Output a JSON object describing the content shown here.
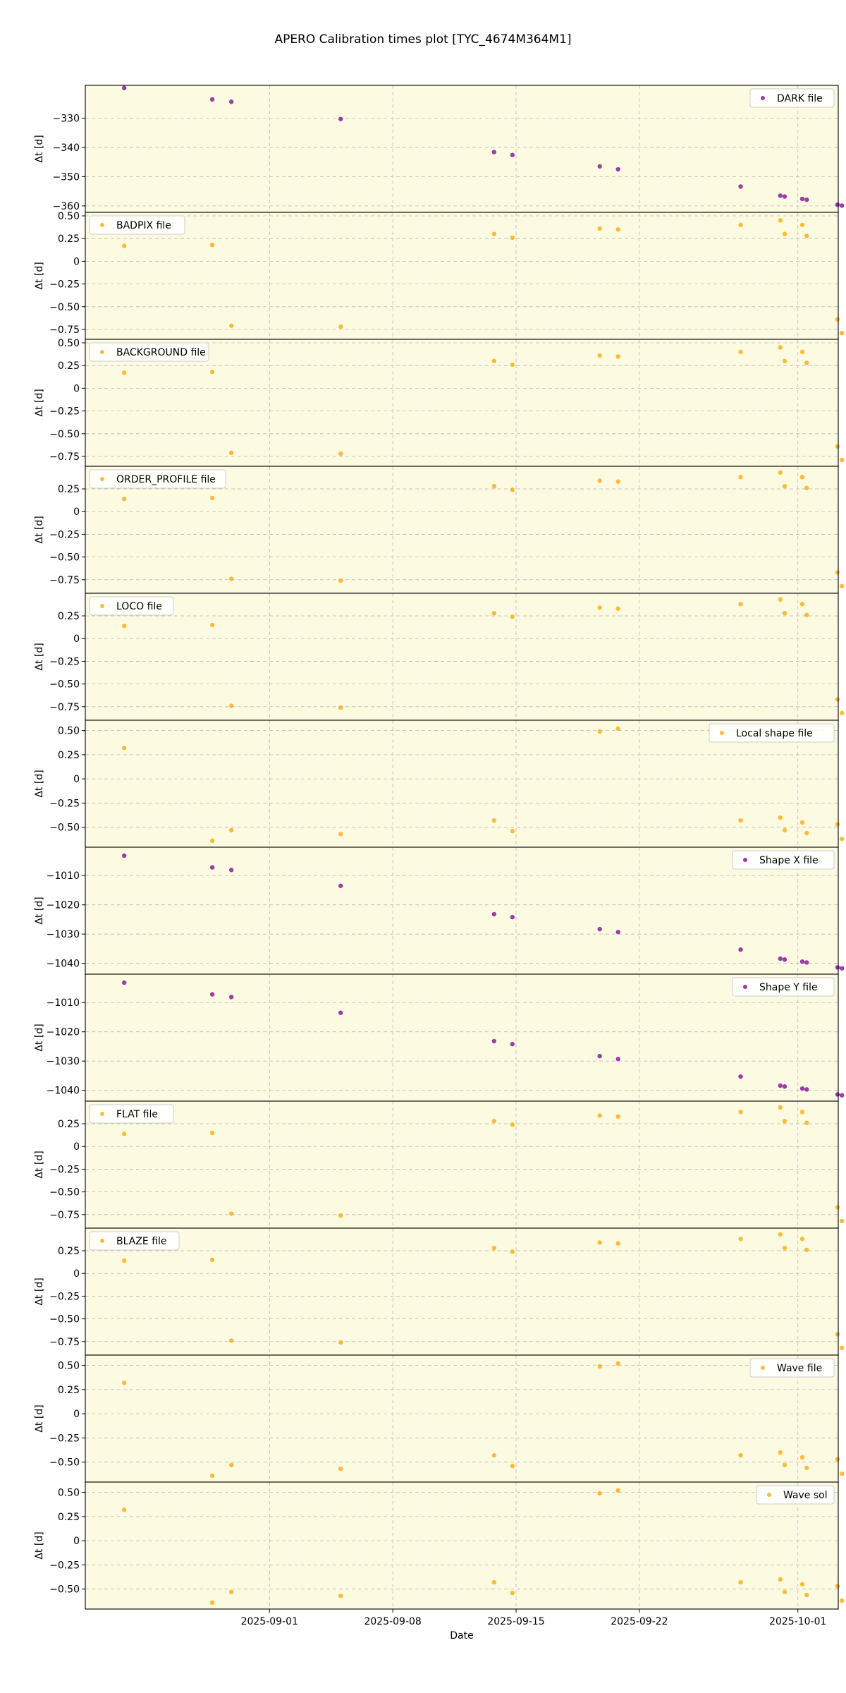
{
  "chart_data": {
    "type": "scatter",
    "title": "APERO Calibration times plot [TYC_4674M364M1]",
    "xlabel": "Date",
    "ylabel": "Δt [d]",
    "xlim": [
      "2025-08-21T13:00",
      "2025-10-03T07:00"
    ],
    "xticks": [
      "2025-09-01",
      "2025-09-08",
      "2025-09-15",
      "2025-09-22",
      "2025-10-01"
    ],
    "grid": true,
    "background": "#fcfbe2",
    "x": [
      "2025-08-23T18:00",
      "2025-08-28T18:00",
      "2025-08-29T20:00",
      "2025-09-05T01:00",
      "2025-09-13T18:00",
      "2025-09-14T19:00",
      "2025-09-19T18:00",
      "2025-09-20T19:00",
      "2025-09-27T18:00",
      "2025-09-30T00:00",
      "2025-09-30T06:00",
      "2025-10-01T06:00",
      "2025-10-01T12:00",
      "2025-10-03T06:00",
      "2025-10-03T12:00"
    ],
    "panels": [
      {
        "name": "DARK file",
        "color": "#8b1a9a",
        "legend": "upper right",
        "ylim": [
          -361,
          -320
        ],
        "yticks": [
          -330,
          -340,
          -350,
          -360
        ],
        "values": [
          -319.7,
          -323.6,
          -324.4,
          -330.3,
          -341.6,
          -342.6,
          -346.5,
          -347.5,
          -353.4,
          -356.5,
          -356.8,
          -357.6,
          -357.9,
          -359.6,
          -359.9
        ]
      },
      {
        "name": "BADPIX file",
        "color": "#ffae1a",
        "legend": "upper left",
        "ylim": [
          -0.82,
          0.5
        ],
        "yticks": [
          0.5,
          0.25,
          0.0,
          -0.25,
          -0.5,
          -0.75
        ],
        "values": [
          0.17,
          0.18,
          -0.71,
          -0.72,
          0.3,
          0.26,
          0.36,
          0.35,
          0.4,
          0.45,
          0.3,
          0.4,
          0.28,
          -0.64,
          -0.79
        ]
      },
      {
        "name": "BACKGROUND file",
        "color": "#ffae1a",
        "legend": "upper left",
        "ylim": [
          -0.82,
          0.5
        ],
        "yticks": [
          0.5,
          0.25,
          0.0,
          -0.25,
          -0.5,
          -0.75
        ],
        "values": [
          0.17,
          0.18,
          -0.71,
          -0.72,
          0.3,
          0.26,
          0.36,
          0.35,
          0.4,
          0.45,
          0.3,
          0.4,
          0.28,
          -0.64,
          -0.79
        ]
      },
      {
        "name": "ORDER_PROFILE file",
        "color": "#ffae1a",
        "legend": "upper left",
        "ylim": [
          -0.86,
          0.46
        ],
        "yticks": [
          0.25,
          0.0,
          -0.25,
          -0.5,
          -0.75
        ],
        "values": [
          0.14,
          0.15,
          -0.74,
          -0.76,
          0.28,
          0.24,
          0.34,
          0.33,
          0.38,
          0.43,
          0.28,
          0.38,
          0.26,
          -0.67,
          -0.82
        ]
      },
      {
        "name": "LOCO file",
        "color": "#ffae1a",
        "legend": "upper left",
        "ylim": [
          -0.86,
          0.46
        ],
        "yticks": [
          0.25,
          0.0,
          -0.25,
          -0.5,
          -0.75
        ],
        "values": [
          0.14,
          0.15,
          -0.74,
          -0.76,
          0.28,
          0.24,
          0.34,
          0.33,
          0.38,
          0.43,
          0.28,
          0.38,
          0.26,
          -0.67,
          -0.82
        ]
      },
      {
        "name": "Local shape file",
        "color": "#ffae1a",
        "legend": "upper right",
        "ylim": [
          -0.67,
          0.57
        ],
        "yticks": [
          0.5,
          0.25,
          0.0,
          -0.25,
          -0.5
        ],
        "values": [
          0.32,
          -0.64,
          -0.53,
          -0.57,
          -0.43,
          -0.54,
          0.49,
          0.52,
          -0.43,
          -0.4,
          -0.53,
          -0.45,
          -0.56,
          -0.47,
          -0.62
        ]
      },
      {
        "name": "Shape X file",
        "color": "#8b1a9a",
        "legend": "upper right",
        "ylim": [
          -1042.5,
          -1001.5
        ],
        "yticks": [
          -1010,
          -1020,
          -1030,
          -1040
        ],
        "values": [
          -1003.2,
          -1007.2,
          -1008.1,
          -1013.5,
          -1023.2,
          -1024.2,
          -1028.3,
          -1029.3,
          -1035.3,
          -1038.4,
          -1038.7,
          -1039.4,
          -1039.7,
          -1041.4,
          -1041.7
        ]
      },
      {
        "name": "Shape Y file",
        "color": "#8b1a9a",
        "legend": "upper right",
        "ylim": [
          -1042.5,
          -1001.5
        ],
        "yticks": [
          -1010,
          -1020,
          -1030,
          -1040
        ],
        "values": [
          -1003.2,
          -1007.2,
          -1008.1,
          -1013.5,
          -1023.2,
          -1024.2,
          -1028.3,
          -1029.3,
          -1035.3,
          -1038.4,
          -1038.7,
          -1039.4,
          -1039.7,
          -1041.4,
          -1041.7
        ]
      },
      {
        "name": "FLAT file",
        "color": "#ffae1a",
        "legend": "upper left",
        "ylim": [
          -0.86,
          0.46
        ],
        "yticks": [
          0.25,
          0.0,
          -0.25,
          -0.5,
          -0.75
        ],
        "values": [
          0.14,
          0.15,
          -0.74,
          -0.76,
          0.28,
          0.24,
          0.34,
          0.33,
          0.38,
          0.43,
          0.28,
          0.38,
          0.26,
          -0.67,
          -0.82
        ]
      },
      {
        "name": "BLAZE file",
        "color": "#ffae1a",
        "legend": "upper left",
        "ylim": [
          -0.86,
          0.46
        ],
        "yticks": [
          0.25,
          0.0,
          -0.25,
          -0.5,
          -0.75
        ],
        "values": [
          0.14,
          0.15,
          -0.74,
          -0.76,
          0.28,
          0.24,
          0.34,
          0.33,
          0.38,
          0.43,
          0.28,
          0.38,
          0.26,
          -0.67,
          -0.82
        ]
      },
      {
        "name": "Wave file",
        "color": "#ffae1a",
        "legend": "upper right",
        "ylim": [
          -0.67,
          0.57
        ],
        "yticks": [
          0.5,
          0.25,
          0.0,
          -0.25,
          -0.5
        ],
        "values": [
          0.32,
          -0.64,
          -0.53,
          -0.57,
          -0.43,
          -0.54,
          0.49,
          0.52,
          -0.43,
          -0.4,
          -0.53,
          -0.45,
          -0.56,
          -0.47,
          -0.62
        ]
      },
      {
        "name": "Wave sol",
        "color": "#ffae1a",
        "legend": "upper right",
        "ylim": [
          -0.67,
          0.57
        ],
        "yticks": [
          0.5,
          0.25,
          0.0,
          -0.25,
          -0.5
        ],
        "values": [
          0.32,
          -0.64,
          -0.53,
          -0.57,
          -0.43,
          -0.54,
          0.49,
          0.52,
          -0.43,
          -0.4,
          -0.53,
          -0.45,
          -0.56,
          -0.47,
          -0.62
        ]
      }
    ]
  }
}
